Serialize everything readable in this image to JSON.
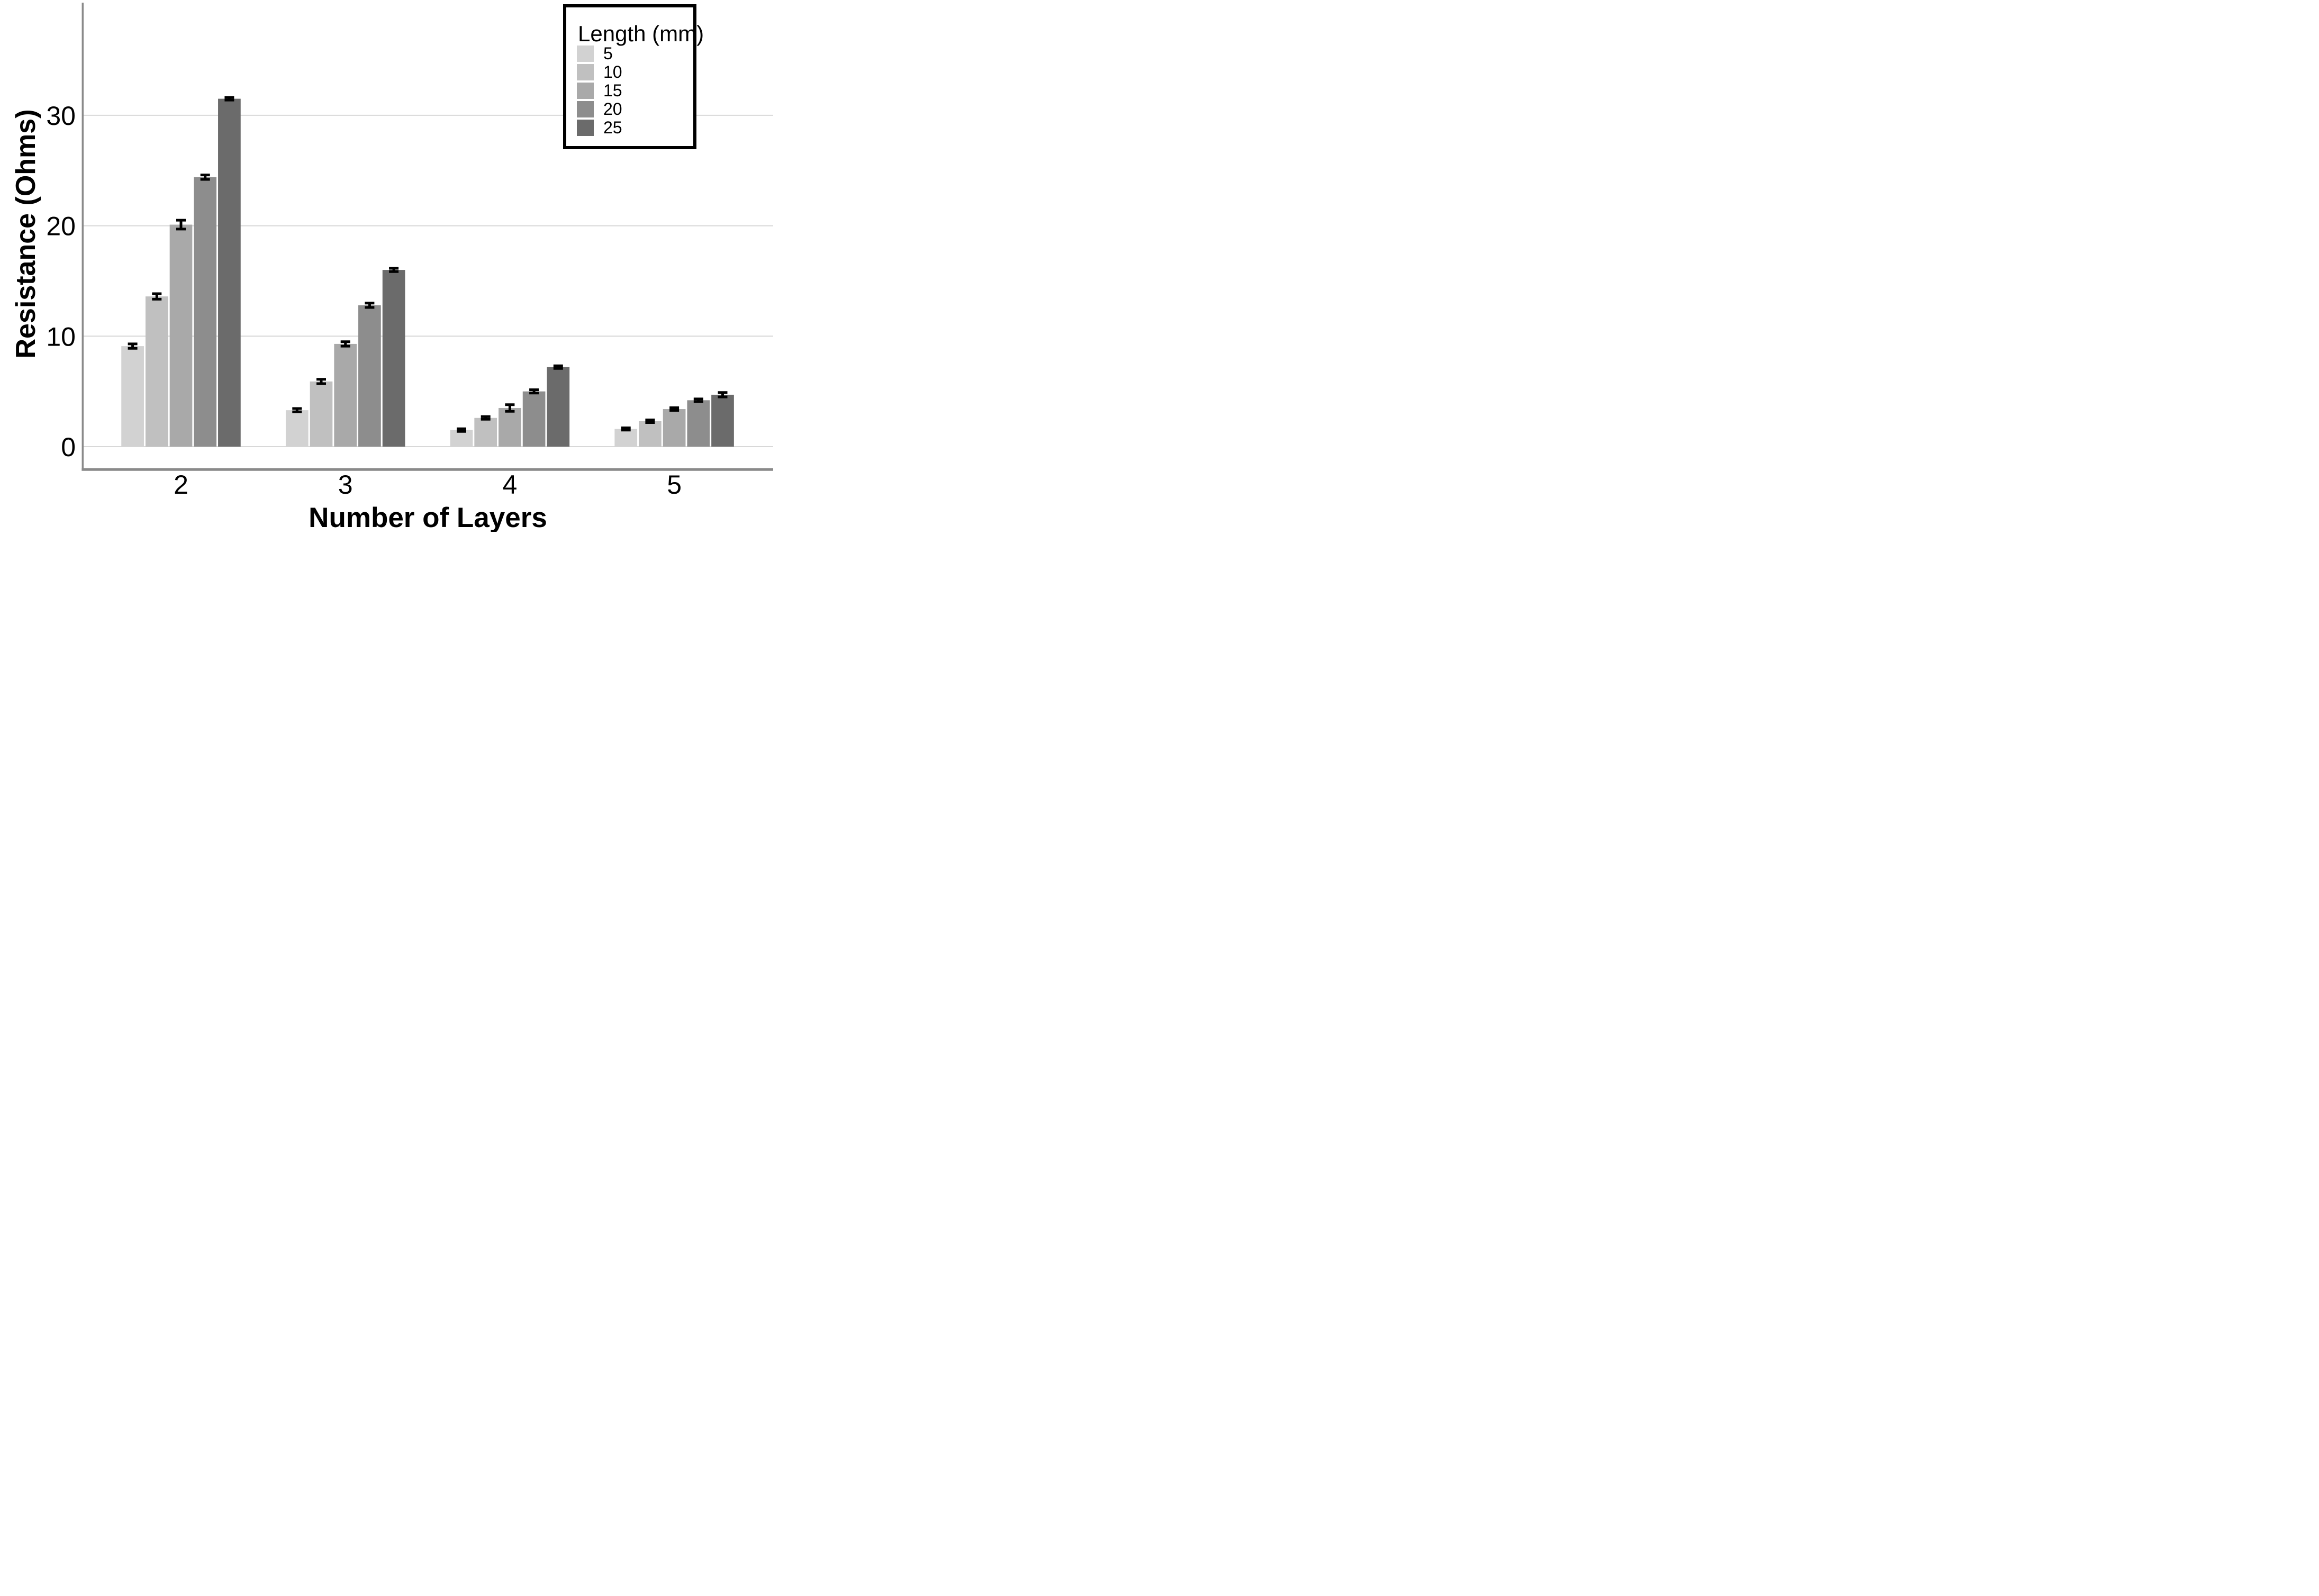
{
  "chart_data": {
    "type": "bar",
    "title": "",
    "xlabel": "Number of Layers",
    "ylabel": "Resistance (Ohms)",
    "categories": [
      "2",
      "3",
      "4",
      "5"
    ],
    "yticks": [
      0,
      10,
      20,
      30
    ],
    "ylim": [
      0,
      40
    ],
    "grid": "horizontal-gridlines-on",
    "error_bars": true,
    "legend": {
      "title": "Length (mm)",
      "position": "top-right",
      "entries": [
        {
          "label": "5",
          "color": "#d2d2d2"
        },
        {
          "label": "10",
          "color": "#c0c0c0"
        },
        {
          "label": "15",
          "color": "#a9a9a9"
        },
        {
          "label": "20",
          "color": "#8d8d8d"
        },
        {
          "label": "25",
          "color": "#6b6b6b"
        }
      ]
    },
    "series": [
      {
        "name": "5",
        "color": "#d2d2d2",
        "values": [
          9.1,
          3.3,
          1.5,
          1.6
        ],
        "errors": [
          0.2,
          0.15,
          0.12,
          0.1
        ]
      },
      {
        "name": "10",
        "color": "#c0c0c0",
        "values": [
          13.6,
          5.9,
          2.6,
          2.3
        ],
        "errors": [
          0.25,
          0.2,
          0.12,
          0.12
        ]
      },
      {
        "name": "15",
        "color": "#a9a9a9",
        "values": [
          20.1,
          9.3,
          3.5,
          3.4
        ],
        "errors": [
          0.4,
          0.2,
          0.3,
          0.12
        ]
      },
      {
        "name": "20",
        "color": "#8d8d8d",
        "values": [
          24.4,
          12.8,
          5.0,
          4.2
        ],
        "errors": [
          0.2,
          0.2,
          0.15,
          0.12
        ]
      },
      {
        "name": "25",
        "color": "#6b6b6b",
        "values": [
          31.5,
          16.0,
          7.2,
          4.7
        ],
        "errors": [
          0.12,
          0.15,
          0.12,
          0.2
        ]
      }
    ],
    "colors": {
      "gridline": "#d8d8d8",
      "axis_line": "#8a8a8a",
      "error_bar": "#000000",
      "text": "#000000",
      "legend_border": "#000000",
      "background": "#ffffff"
    }
  }
}
